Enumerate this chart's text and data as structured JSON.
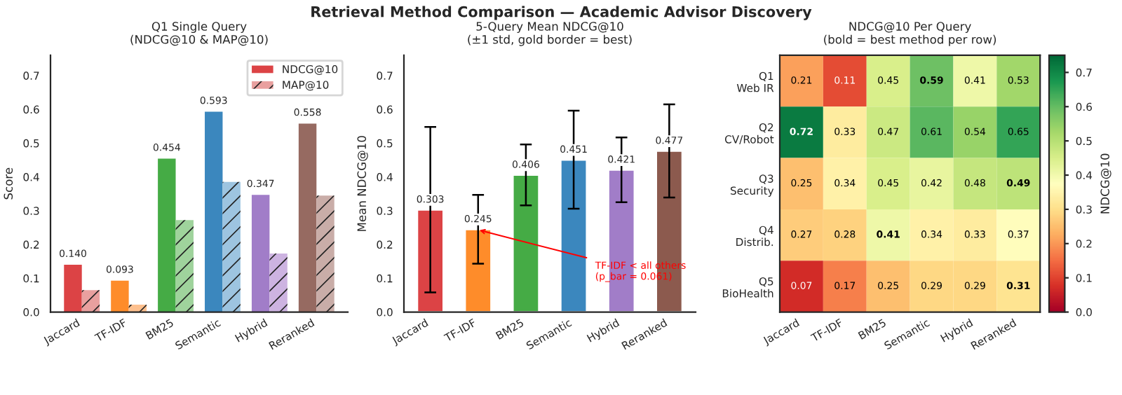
{
  "chart_data": [
    {
      "type": "bar",
      "title": "Q1 Single Query\n(NDCG@10 & MAP@10)",
      "ylabel": "Score",
      "categories": [
        "Jaccard",
        "TF-IDF",
        "BM25",
        "Semantic",
        "Hybrid",
        "Reranked"
      ],
      "series": [
        {
          "name": "NDCG@10",
          "colors": [
            "#dc4345",
            "#fe8c2a",
            "#45ab45",
            "#3b87be",
            "#a17dc8",
            "#966a61"
          ],
          "values": [
            0.14,
            0.093,
            0.454,
            0.593,
            0.347,
            0.558
          ],
          "value_labels": [
            "0.140",
            "0.093",
            "0.454",
            "0.593",
            "0.347",
            "0.558"
          ]
        },
        {
          "name": "MAP@10",
          "colors": [
            "#e9a09f",
            "#fdc08e",
            "#9fd39c",
            "#9dc4e0",
            "#cdb3e1",
            "#c9ada8"
          ],
          "values": [
            0.065,
            0.022,
            0.272,
            0.385,
            0.173,
            0.345
          ]
        }
      ],
      "ylim": [
        0,
        0.76
      ],
      "yticks": [
        {
          "value": 0,
          "label": "0.0"
        },
        0.1,
        0.2,
        0.3,
        0.4,
        0.5,
        0.6,
        0.7
      ],
      "legend": "top right",
      "grid": false,
      "annotations": [
        "Retrieval Method Comparison — Academic Advisor Discovery"
      ]
    },
    {
      "type": "bar",
      "title": "5-Query Mean NDCG@10\n(±1 std, gold border = best)",
      "ylabel": "Mean NDCG@10",
      "categories": [
        "Jaccard",
        "TF-IDF",
        "BM25",
        "Semantic",
        "Hybrid",
        "Reranked"
      ],
      "colors": [
        "#dc4345",
        "#fe8c2a",
        "#45ab45",
        "#3b87be",
        "#a17dc8",
        "#8c5a4e"
      ],
      "values": [
        0.303,
        0.245,
        0.406,
        0.451,
        0.421,
        0.477
      ],
      "data_labels": true,
      "errors": [
        0.245,
        0.102,
        0.09,
        0.145,
        0.096,
        0.138
      ],
      "annotations": [
        {
          "text": "TF-IDF < all others\n(p_bar = 0.061)",
          "x": "TF-IDF",
          "y": 0.245
        }
      ],
      "ylim": [
        0,
        0.76
      ],
      "yticks": [
        {
          "value": 0,
          "label": "0.0"
        },
        0.1,
        0.2,
        0.3,
        0.4,
        0.5,
        0.6,
        0.7
      ],
      "grid": false
    },
    {
      "type": "heatmap",
      "title": "NDCG@10 Per Query\n(bold = best method per row)",
      "clabel": "NDCG@10",
      "categories": [
        "Jaccard",
        "TF-IDF",
        "BM25",
        "Semantic",
        "Hybrid",
        "Reranked"
      ],
      "y_categories": [
        "Q1\nWeb IR",
        "Q2\nCV/Robot",
        "Q3\nSecurity",
        "Q4\nDistrib.",
        "Q5\nBioHealth"
      ],
      "cells": [
        [
          0.21,
          0.11,
          0.45,
          0.59,
          0.41,
          0.53
        ],
        [
          0.72,
          0.33,
          0.47,
          0.61,
          0.54,
          0.65
        ],
        [
          0.25,
          0.34,
          0.45,
          0.42,
          0.48,
          0.49
        ],
        [
          0.27,
          0.28,
          0.41,
          0.34,
          0.33,
          0.37
        ],
        [
          0.07,
          0.17,
          0.25,
          0.29,
          0.29,
          0.31
        ]
      ],
      "data_labels": true,
      "clim": [
        0,
        0.75
      ],
      "cticks": [
        {
          "value": 0,
          "label": "0.0"
        },
        0.1,
        0.2,
        0.3,
        0.4,
        0.5,
        0.6,
        0.7
      ]
    }
  ]
}
